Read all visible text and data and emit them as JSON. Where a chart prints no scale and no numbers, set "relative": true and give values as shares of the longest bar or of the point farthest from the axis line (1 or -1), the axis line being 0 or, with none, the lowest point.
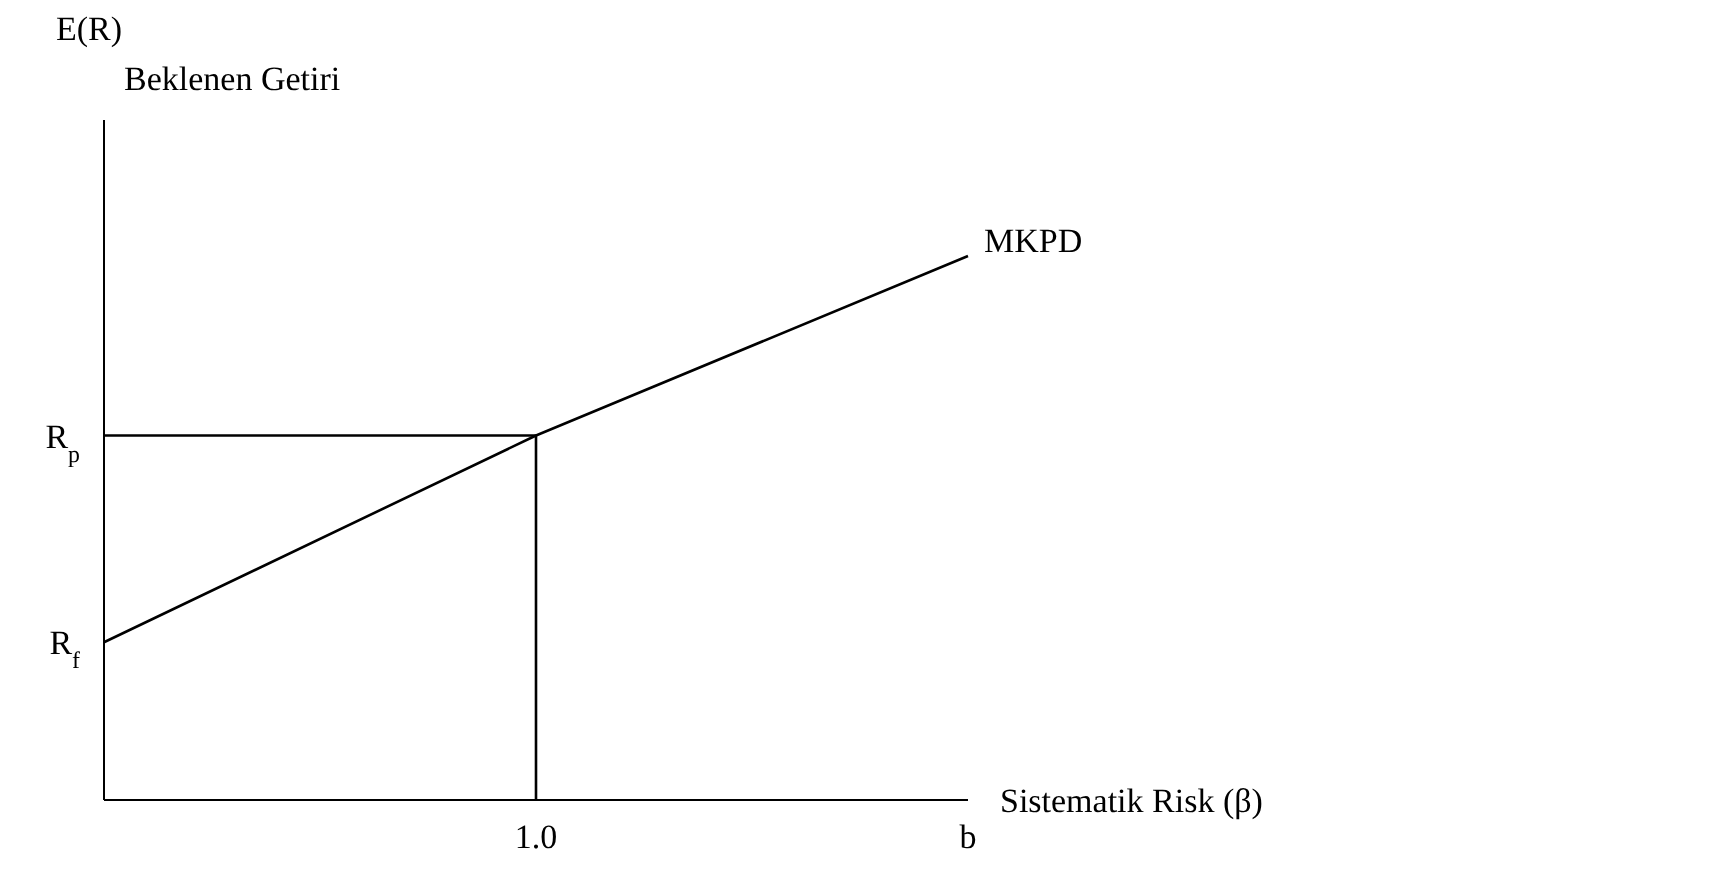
{
  "chart_data": {
    "type": "line",
    "relative": true,
    "ylabel": "E(R)\nBeklenen Getiri",
    "xlabel": "Sistematik Risk  (β)",
    "categories": [
      null,
      "1.0",
      "b"
    ],
    "grid": false,
    "legend": false,
    "marker": "none",
    "line_style": "solid",
    "series": [
      {
        "name": "MKPD",
        "color": "#000000",
        "values": [
          0.29,
          0.67,
          1
        ]
      },
      {
        "color": "#000000",
        "x": [
          null,
          "1.0",
          "1.0"
        ],
        "values": [
          0.67,
          0.67,
          0
        ]
      }
    ],
    "annotations": [
      "R$_{f}$",
      "R$_{p}$"
    ]
  }
}
